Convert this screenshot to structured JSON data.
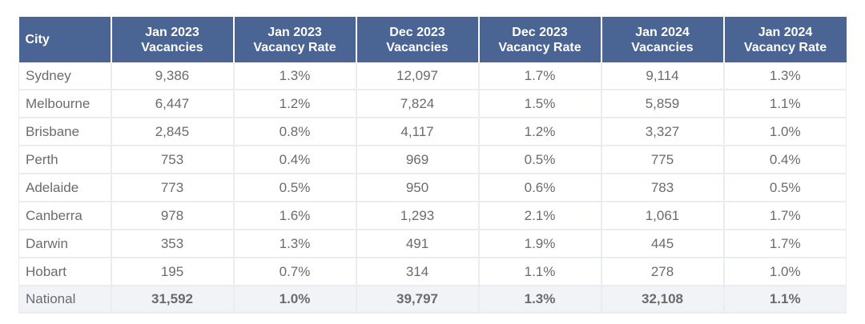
{
  "headers": [
    {
      "line1": "City",
      "line2": ""
    },
    {
      "line1": "Jan 2023",
      "line2": "Vacancies"
    },
    {
      "line1": "Jan 2023",
      "line2": "Vacancy Rate"
    },
    {
      "line1": "Dec 2023",
      "line2": "Vacancies"
    },
    {
      "line1": "Dec 2023",
      "line2": "Vacancy Rate"
    },
    {
      "line1": "Jan 2024",
      "line2": "Vacancies"
    },
    {
      "line1": "Jan 2024",
      "line2": "Vacancy Rate"
    }
  ],
  "rows": [
    [
      "Sydney",
      "9,386",
      "1.3%",
      "12,097",
      "1.7%",
      "9,114",
      "1.3%"
    ],
    [
      "Melbourne",
      "6,447",
      "1.2%",
      "7,824",
      "1.5%",
      "5,859",
      "1.1%"
    ],
    [
      "Brisbane",
      "2,845",
      "0.8%",
      "4,117",
      "1.2%",
      "3,327",
      "1.0%"
    ],
    [
      "Perth",
      "753",
      "0.4%",
      "969",
      "0.5%",
      "775",
      "0.4%"
    ],
    [
      "Adelaide",
      "773",
      "0.5%",
      "950",
      "0.6%",
      "783",
      "0.5%"
    ],
    [
      "Canberra",
      "978",
      "1.6%",
      "1,293",
      "2.1%",
      "1,061",
      "1.7%"
    ],
    [
      "Darwin",
      "353",
      "1.3%",
      "491",
      "1.9%",
      "445",
      "1.7%"
    ],
    [
      "Hobart",
      "195",
      "0.7%",
      "314",
      "1.1%",
      "278",
      "1.0%"
    ]
  ],
  "total": [
    "National",
    "31,592",
    "1.0%",
    "39,797",
    "1.3%",
    "32,108",
    "1.1%"
  ],
  "colors": {
    "header_bg": "#4a6593",
    "header_text": "#ffffff",
    "cell_text": "#6b6b6b",
    "grid": "#e9ecf0",
    "total_bg": "#f1f3f6"
  }
}
